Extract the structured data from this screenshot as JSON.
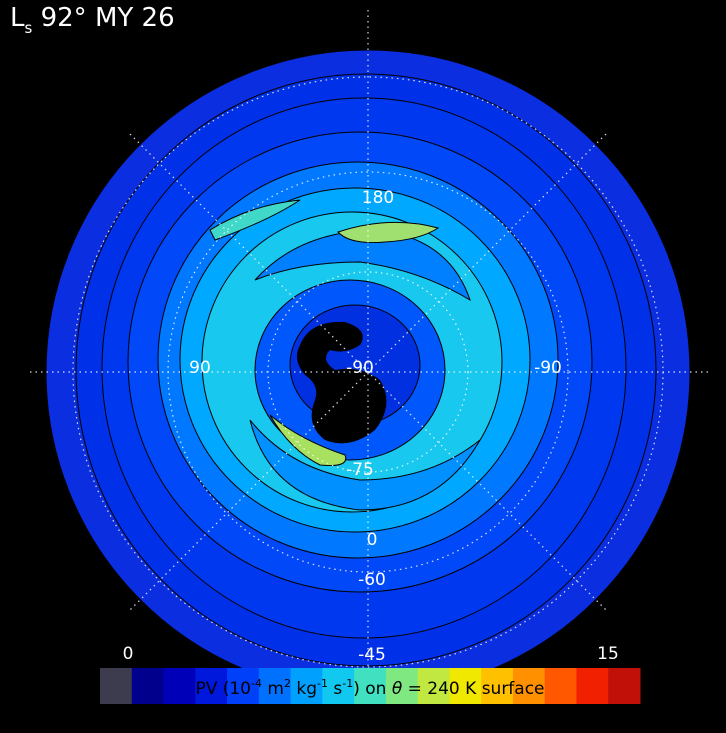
{
  "title": {
    "main": "L",
    "subscript": "s",
    "rest": " 92° MY 26"
  },
  "map_labels": [
    "180",
    "90",
    "-90",
    "-90",
    "-75",
    "0",
    "-60",
    "-45"
  ],
  "colorbar": {
    "range": [
      0,
      15
    ],
    "ticks": [
      0,
      15
    ],
    "colors": [
      "#3c3c4e",
      "#00008c",
      "#0000b8",
      "#0018dc",
      "#0040f8",
      "#0070ff",
      "#00a0ff",
      "#10c8f0",
      "#40e0c0",
      "#80e880",
      "#c0e840",
      "#f0e800",
      "#ffc000",
      "#ff9000",
      "#ff5800",
      "#f02000",
      "#c01008"
    ],
    "caption": [
      {
        "text": "PV (10",
        "sup": false
      },
      {
        "text": "-4",
        "sup": true
      },
      {
        "text": " m",
        "sup": false
      },
      {
        "text": "2",
        "sup": true
      },
      {
        "text": " kg",
        "sup": false
      },
      {
        "text": "-1",
        "sup": true
      },
      {
        "text": " s",
        "sup": false
      },
      {
        "text": "-1",
        "sup": true
      },
      {
        "text": ") on ",
        "sup": false
      },
      {
        "text": "θ",
        "sup": false
      },
      {
        "text": " = 240 K surface",
        "sup": false
      }
    ]
  }
}
